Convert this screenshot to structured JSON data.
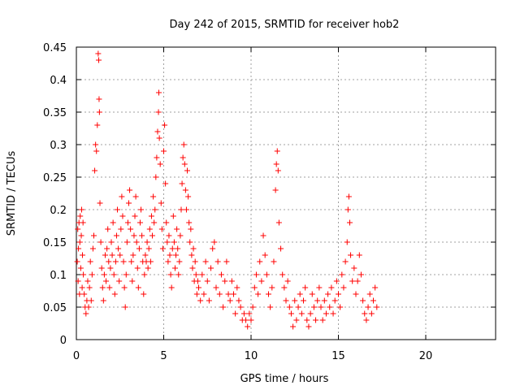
{
  "chart_data": {
    "type": "scatter",
    "title": "Day 242 of 2015, SRMTID for receiver hob2",
    "xlabel": "GPS time / hours",
    "ylabel": "SRMTID / TECUs",
    "xlim": [
      0,
      24
    ],
    "ylim": [
      0,
      0.45
    ],
    "xticks": [
      0,
      5,
      10,
      15,
      20
    ],
    "xtick_labels": [
      "0",
      "5",
      "10",
      "15",
      "20"
    ],
    "yticks": [
      0,
      0.05,
      0.1,
      0.15,
      0.2,
      0.25,
      0.3,
      0.35,
      0.4,
      0.45
    ],
    "ytick_labels": [
      "0",
      "0.05",
      "0.1",
      "0.15",
      "0.2",
      "0.25",
      "0.3",
      "0.35",
      "0.4",
      "0.45"
    ],
    "grid": true,
    "marker": "+",
    "series": [
      {
        "color": "#ff0000",
        "points": [
          [
            0.05,
            0.12
          ],
          [
            0.08,
            0.17
          ],
          [
            0.1,
            0.09
          ],
          [
            0.12,
            0.14
          ],
          [
            0.15,
            0.18
          ],
          [
            0.18,
            0.07
          ],
          [
            0.2,
            0.15
          ],
          [
            0.22,
            0.19
          ],
          [
            0.25,
            0.11
          ],
          [
            0.28,
            0.16
          ],
          [
            0.3,
            0.2
          ],
          [
            0.33,
            0.08
          ],
          [
            0.35,
            0.13
          ],
          [
            0.38,
            0.18
          ],
          [
            0.4,
            0.1
          ],
          [
            0.45,
            0.07
          ],
          [
            0.5,
            0.05
          ],
          [
            0.55,
            0.04
          ],
          [
            0.6,
            0.06
          ],
          [
            0.65,
            0.09
          ],
          [
            0.7,
            0.05
          ],
          [
            0.75,
            0.08
          ],
          [
            0.8,
            0.12
          ],
          [
            0.85,
            0.06
          ],
          [
            0.9,
            0.1
          ],
          [
            0.95,
            0.14
          ],
          [
            1.0,
            0.16
          ],
          [
            1.05,
            0.26
          ],
          [
            1.1,
            0.3
          ],
          [
            1.15,
            0.29
          ],
          [
            1.2,
            0.33
          ],
          [
            1.25,
            0.44
          ],
          [
            1.28,
            0.43
          ],
          [
            1.3,
            0.37
          ],
          [
            1.32,
            0.35
          ],
          [
            1.35,
            0.21
          ],
          [
            1.4,
            0.15
          ],
          [
            1.45,
            0.11
          ],
          [
            1.5,
            0.08
          ],
          [
            1.55,
            0.06
          ],
          [
            1.6,
            0.1
          ],
          [
            1.65,
            0.13
          ],
          [
            1.7,
            0.09
          ],
          [
            1.75,
            0.14
          ],
          [
            1.8,
            0.17
          ],
          [
            1.85,
            0.12
          ],
          [
            1.9,
            0.08
          ],
          [
            1.95,
            0.11
          ],
          [
            2.0,
            0.15
          ],
          [
            2.05,
            0.13
          ],
          [
            2.1,
            0.18
          ],
          [
            2.15,
            0.1
          ],
          [
            2.2,
            0.07
          ],
          [
            2.25,
            0.12
          ],
          [
            2.3,
            0.16
          ],
          [
            2.35,
            0.2
          ],
          [
            2.4,
            0.14
          ],
          [
            2.45,
            0.09
          ],
          [
            2.5,
            0.13
          ],
          [
            2.55,
            0.17
          ],
          [
            2.6,
            0.22
          ],
          [
            2.65,
            0.19
          ],
          [
            2.7,
            0.12
          ],
          [
            2.75,
            0.08
          ],
          [
            2.8,
            0.05
          ],
          [
            2.85,
            0.1
          ],
          [
            2.9,
            0.15
          ],
          [
            2.95,
            0.18
          ],
          [
            3.0,
            0.21
          ],
          [
            3.05,
            0.23
          ],
          [
            3.1,
            0.17
          ],
          [
            3.15,
            0.12
          ],
          [
            3.2,
            0.09
          ],
          [
            3.25,
            0.13
          ],
          [
            3.3,
            0.16
          ],
          [
            3.35,
            0.19
          ],
          [
            3.4,
            0.22
          ],
          [
            3.45,
            0.15
          ],
          [
            3.5,
            0.11
          ],
          [
            3.55,
            0.08
          ],
          [
            3.6,
            0.14
          ],
          [
            3.65,
            0.18
          ],
          [
            3.7,
            0.2
          ],
          [
            3.75,
            0.16
          ],
          [
            3.8,
            0.12
          ],
          [
            3.85,
            0.07
          ],
          [
            3.9,
            0.1
          ],
          [
            3.95,
            0.13
          ],
          [
            4.0,
            0.12
          ],
          [
            4.05,
            0.15
          ],
          [
            4.1,
            0.11
          ],
          [
            4.15,
            0.14
          ],
          [
            4.2,
            0.17
          ],
          [
            4.25,
            0.12
          ],
          [
            4.3,
            0.19
          ],
          [
            4.35,
            0.16
          ],
          [
            4.4,
            0.22
          ],
          [
            4.45,
            0.18
          ],
          [
            4.5,
            0.2
          ],
          [
            4.55,
            0.25
          ],
          [
            4.6,
            0.28
          ],
          [
            4.65,
            0.32
          ],
          [
            4.7,
            0.35
          ],
          [
            4.72,
            0.38
          ],
          [
            4.75,
            0.31
          ],
          [
            4.8,
            0.27
          ],
          [
            4.85,
            0.21
          ],
          [
            4.9,
            0.17
          ],
          [
            4.95,
            0.14
          ],
          [
            5.0,
            0.29
          ],
          [
            5.05,
            0.33
          ],
          [
            5.1,
            0.24
          ],
          [
            5.15,
            0.18
          ],
          [
            5.2,
            0.15
          ],
          [
            5.25,
            0.12
          ],
          [
            5.3,
            0.16
          ],
          [
            5.35,
            0.13
          ],
          [
            5.4,
            0.1
          ],
          [
            5.45,
            0.08
          ],
          [
            5.5,
            0.14
          ],
          [
            5.55,
            0.19
          ],
          [
            5.6,
            0.15
          ],
          [
            5.65,
            0.11
          ],
          [
            5.7,
            0.13
          ],
          [
            5.75,
            0.17
          ],
          [
            5.8,
            0.14
          ],
          [
            5.85,
            0.1
          ],
          [
            5.9,
            0.12
          ],
          [
            5.95,
            0.16
          ],
          [
            6.0,
            0.2
          ],
          [
            6.05,
            0.24
          ],
          [
            6.1,
            0.28
          ],
          [
            6.15,
            0.3
          ],
          [
            6.2,
            0.27
          ],
          [
            6.25,
            0.23
          ],
          [
            6.3,
            0.2
          ],
          [
            6.35,
            0.26
          ],
          [
            6.4,
            0.22
          ],
          [
            6.45,
            0.18
          ],
          [
            6.5,
            0.15
          ],
          [
            6.55,
            0.17
          ],
          [
            6.6,
            0.13
          ],
          [
            6.65,
            0.11
          ],
          [
            6.7,
            0.14
          ],
          [
            6.75,
            0.09
          ],
          [
            6.8,
            0.12
          ],
          [
            6.85,
            0.1
          ],
          [
            6.9,
            0.07
          ],
          [
            6.95,
            0.09
          ],
          [
            7.0,
            0.08
          ],
          [
            7.1,
            0.06
          ],
          [
            7.2,
            0.1
          ],
          [
            7.3,
            0.07
          ],
          [
            7.4,
            0.12
          ],
          [
            7.5,
            0.09
          ],
          [
            7.6,
            0.06
          ],
          [
            7.7,
            0.11
          ],
          [
            7.8,
            0.14
          ],
          [
            7.9,
            0.15
          ],
          [
            8.0,
            0.08
          ],
          [
            8.1,
            0.12
          ],
          [
            8.2,
            0.07
          ],
          [
            8.3,
            0.1
          ],
          [
            8.4,
            0.05
          ],
          [
            8.5,
            0.09
          ],
          [
            8.6,
            0.12
          ],
          [
            8.7,
            0.07
          ],
          [
            8.8,
            0.06
          ],
          [
            8.9,
            0.09
          ],
          [
            9.0,
            0.07
          ],
          [
            9.1,
            0.04
          ],
          [
            9.2,
            0.08
          ],
          [
            9.3,
            0.06
          ],
          [
            9.4,
            0.05
          ],
          [
            9.5,
            0.03
          ],
          [
            9.6,
            0.04
          ],
          [
            9.7,
            0.03
          ],
          [
            9.8,
            0.02
          ],
          [
            9.9,
            0.04
          ],
          [
            10.0,
            0.03
          ],
          [
            10.1,
            0.05
          ],
          [
            10.2,
            0.08
          ],
          [
            10.3,
            0.1
          ],
          [
            10.4,
            0.07
          ],
          [
            10.5,
            0.12
          ],
          [
            10.6,
            0.09
          ],
          [
            10.7,
            0.16
          ],
          [
            10.8,
            0.13
          ],
          [
            10.9,
            0.1
          ],
          [
            11.0,
            0.07
          ],
          [
            11.1,
            0.05
          ],
          [
            11.2,
            0.08
          ],
          [
            11.3,
            0.12
          ],
          [
            11.4,
            0.23
          ],
          [
            11.45,
            0.27
          ],
          [
            11.5,
            0.29
          ],
          [
            11.55,
            0.26
          ],
          [
            11.6,
            0.18
          ],
          [
            11.7,
            0.14
          ],
          [
            11.8,
            0.1
          ],
          [
            11.9,
            0.08
          ],
          [
            12.0,
            0.06
          ],
          [
            12.1,
            0.09
          ],
          [
            12.2,
            0.05
          ],
          [
            12.3,
            0.04
          ],
          [
            12.4,
            0.02
          ],
          [
            12.5,
            0.06
          ],
          [
            12.6,
            0.03
          ],
          [
            12.7,
            0.05
          ],
          [
            12.8,
            0.07
          ],
          [
            12.9,
            0.04
          ],
          [
            13.0,
            0.06
          ],
          [
            13.1,
            0.08
          ],
          [
            13.2,
            0.03
          ],
          [
            13.3,
            0.02
          ],
          [
            13.4,
            0.04
          ],
          [
            13.5,
            0.07
          ],
          [
            13.6,
            0.05
          ],
          [
            13.7,
            0.03
          ],
          [
            13.8,
            0.06
          ],
          [
            13.9,
            0.08
          ],
          [
            14.0,
            0.05
          ],
          [
            14.1,
            0.03
          ],
          [
            14.2,
            0.06
          ],
          [
            14.3,
            0.04
          ],
          [
            14.4,
            0.07
          ],
          [
            14.5,
            0.05
          ],
          [
            14.6,
            0.08
          ],
          [
            14.7,
            0.04
          ],
          [
            14.8,
            0.06
          ],
          [
            14.9,
            0.09
          ],
          [
            15.0,
            0.07
          ],
          [
            15.1,
            0.05
          ],
          [
            15.2,
            0.1
          ],
          [
            15.3,
            0.08
          ],
          [
            15.4,
            0.12
          ],
          [
            15.5,
            0.15
          ],
          [
            15.55,
            0.2
          ],
          [
            15.6,
            0.22
          ],
          [
            15.65,
            0.18
          ],
          [
            15.7,
            0.13
          ],
          [
            15.8,
            0.09
          ],
          [
            15.9,
            0.11
          ],
          [
            16.0,
            0.07
          ],
          [
            16.1,
            0.09
          ],
          [
            16.2,
            0.13
          ],
          [
            16.3,
            0.1
          ],
          [
            16.4,
            0.06
          ],
          [
            16.5,
            0.04
          ],
          [
            16.6,
            0.03
          ],
          [
            16.7,
            0.05
          ],
          [
            16.8,
            0.07
          ],
          [
            16.9,
            0.04
          ],
          [
            17.0,
            0.06
          ],
          [
            17.1,
            0.08
          ],
          [
            17.2,
            0.05
          ]
        ]
      }
    ]
  }
}
